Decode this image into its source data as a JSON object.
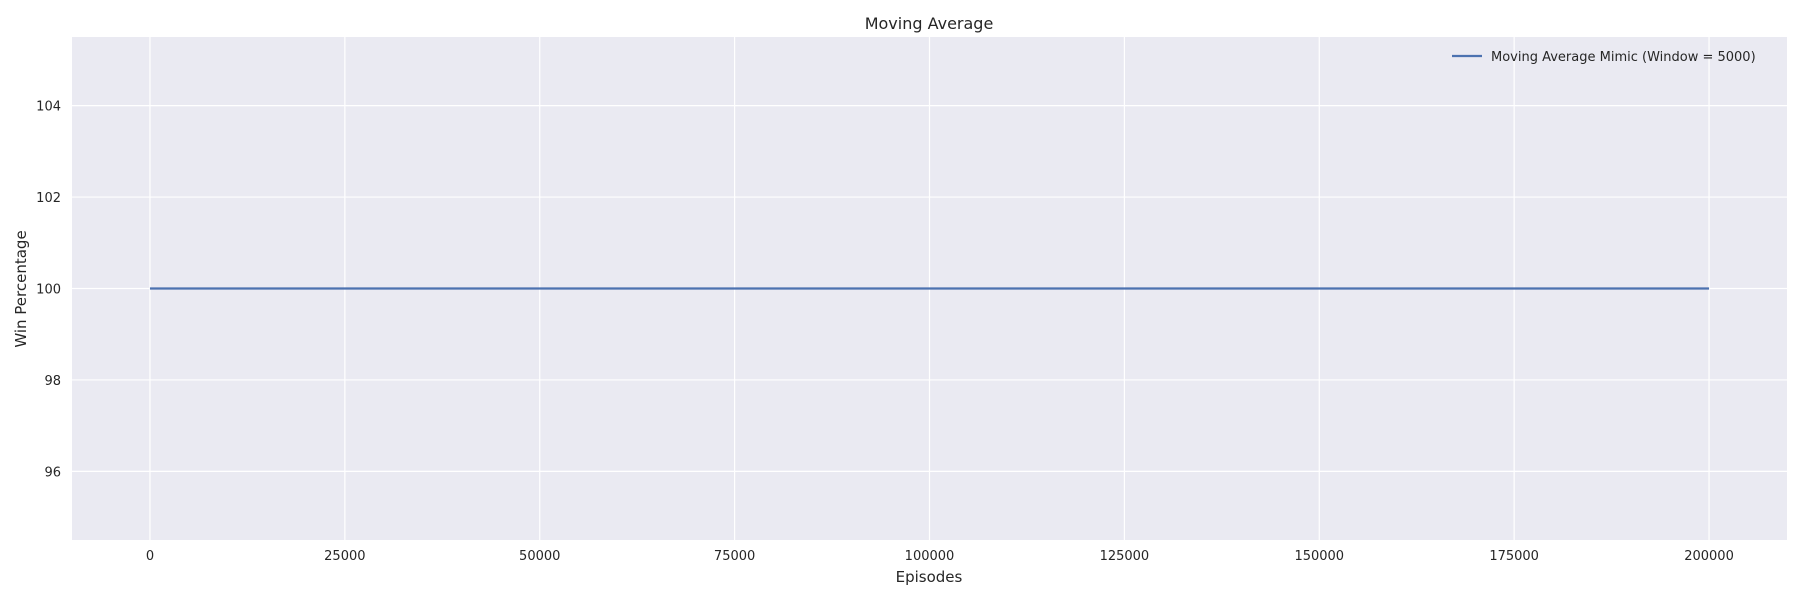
{
  "chart_data": {
    "type": "line",
    "title": "Moving Average",
    "xlabel": "Episodes",
    "ylabel": "Win Percentage",
    "xlim": [
      -10000,
      210000
    ],
    "ylim": [
      94.5,
      105.5
    ],
    "xticks": [
      0,
      25000,
      50000,
      75000,
      100000,
      125000,
      150000,
      175000,
      200000
    ],
    "xtick_labels": [
      "0",
      "25000",
      "50000",
      "75000",
      "100000",
      "125000",
      "150000",
      "175000",
      "200000"
    ],
    "yticks": [
      96,
      98,
      100,
      102,
      104
    ],
    "ytick_labels": [
      "96",
      "98",
      "100",
      "102",
      "104"
    ],
    "grid": true,
    "legend_position": "top-right",
    "series": [
      {
        "name": "Moving Average Mimic (Window = 5000)",
        "color": "#4c72b0",
        "x": [
          0,
          200000
        ],
        "y": [
          100,
          100
        ]
      }
    ]
  }
}
